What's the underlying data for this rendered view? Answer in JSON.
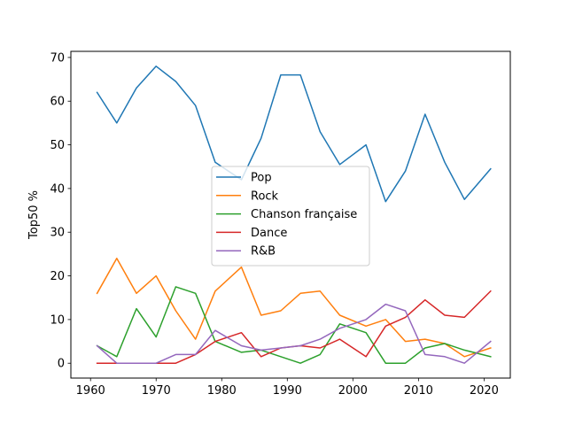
{
  "chart_data": {
    "type": "line",
    "xlabel": "",
    "ylabel": "Top50 %",
    "xlim": [
      1957,
      2024
    ],
    "ylim": [
      -3.4,
      71.4
    ],
    "xticks": [
      1960,
      1970,
      1980,
      1990,
      2000,
      2010,
      2020
    ],
    "yticks": [
      0,
      10,
      20,
      30,
      40,
      50,
      60,
      70
    ],
    "grid": false,
    "legend_position": "center",
    "x": [
      1961,
      1964,
      1967,
      1970,
      1973,
      1976,
      1979,
      1983,
      1986,
      1989,
      1992,
      1995,
      1998,
      2002,
      2005,
      2008,
      2011,
      2014,
      2017,
      2021
    ],
    "series": [
      {
        "name": "Pop",
        "color": "#1f77b4",
        "values": [
          62,
          55,
          63,
          68,
          64.5,
          59,
          46,
          42,
          51.5,
          66,
          66,
          53,
          45.5,
          50,
          37,
          44,
          57,
          46,
          37.5,
          44.5
        ]
      },
      {
        "name": "Rock",
        "color": "#ff7f0e",
        "values": [
          16,
          24,
          16,
          20,
          12,
          5.5,
          16.5,
          22,
          11,
          12,
          16,
          16.5,
          11,
          8.5,
          10,
          5,
          5.5,
          4.5,
          1.5,
          3.5
        ]
      },
      {
        "name": "Chanson française",
        "color": "#2ca02c",
        "values": [
          4,
          1.5,
          12.5,
          6,
          17.5,
          16,
          5,
          2.5,
          3,
          1.5,
          0,
          2,
          9,
          7,
          0,
          0,
          3.5,
          4.5,
          3,
          1.5
        ]
      },
      {
        "name": "Dance",
        "color": "#d62728",
        "values": [
          0,
          0,
          0,
          0,
          0,
          2,
          5,
          7,
          1.5,
          3.5,
          4,
          3.5,
          5.5,
          1.5,
          8.5,
          10.5,
          14.5,
          11,
          10.5,
          16.5
        ]
      },
      {
        "name": "R&B",
        "color": "#9467bd",
        "values": [
          4,
          0,
          0,
          0,
          2,
          2,
          7.5,
          4,
          3,
          3.5,
          4,
          5.5,
          8,
          10,
          13.5,
          12,
          2,
          1.5,
          0,
          5
        ]
      }
    ]
  }
}
